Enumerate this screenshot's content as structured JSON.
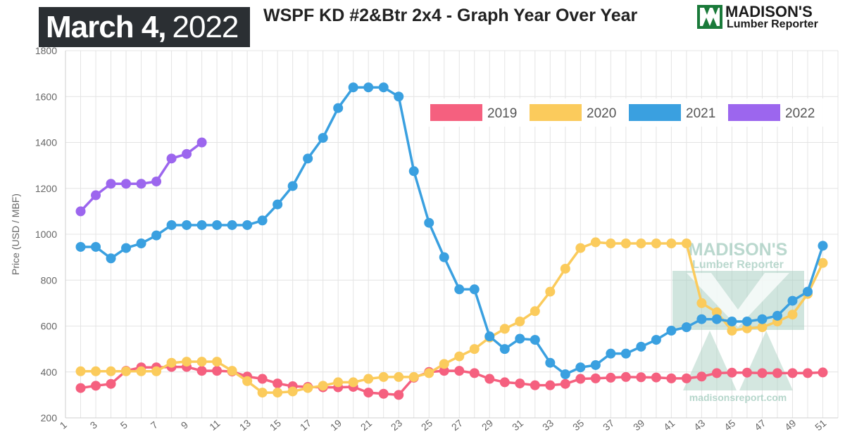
{
  "header": {
    "date_month_day": "March 4,",
    "date_year": "2022",
    "title": "WSPF KD #2&Btr 2x4 - Graph Year Over Year",
    "logo_top": "MADISON'S",
    "logo_bottom": "Lumber Reporter"
  },
  "watermark": {
    "line1": "MADISON'S",
    "line2": "Lumber Reporter",
    "url": "madisonsreport.com"
  },
  "colors": {
    "2019": "#f5607f",
    "2020": "#fbcb5c",
    "2021": "#3aa0e0",
    "2022": "#9c66ee",
    "logo_green": "#1a7a3a",
    "watermark": "#a9cfc2"
  },
  "chart_data": {
    "type": "line",
    "title": "WSPF KD #2&Btr 2x4 - Graph Year Over Year",
    "xlabel": "",
    "ylabel": "Price (USD / MBF)",
    "xlim": [
      1,
      52
    ],
    "ylim": [
      200,
      1800
    ],
    "x_ticks": [
      "1",
      "3",
      "5",
      "7",
      "9",
      "11",
      "13",
      "15",
      "17",
      "19",
      "21",
      "23",
      "25",
      "27",
      "29",
      "31",
      "33",
      "35",
      "37",
      "39",
      "41",
      "43",
      "45",
      "47",
      "49",
      "51"
    ],
    "y_ticks": [
      "200",
      "400",
      "600",
      "800",
      "1000",
      "1200",
      "1400",
      "1600",
      "1800"
    ],
    "grid": true,
    "legend_position": "top-right",
    "series": [
      {
        "name": "2019",
        "x": [
          2,
          3,
          4,
          5,
          6,
          7,
          8,
          9,
          10,
          11,
          12,
          13,
          14,
          15,
          16,
          17,
          18,
          19,
          20,
          21,
          22,
          23,
          24,
          25,
          26,
          27,
          28,
          29,
          30,
          31,
          32,
          33,
          34,
          35,
          36,
          37,
          38,
          39,
          40,
          41,
          42,
          43,
          44,
          45,
          46,
          47,
          48,
          49,
          50,
          51
        ],
        "values": [
          330,
          340,
          348,
          405,
          420,
          420,
          422,
          422,
          405,
          405,
          402,
          380,
          370,
          350,
          338,
          335,
          333,
          333,
          335,
          310,
          305,
          300,
          375,
          400,
          405,
          405,
          395,
          370,
          355,
          350,
          342,
          342,
          348,
          370,
          372,
          375,
          378,
          377,
          376,
          372,
          372,
          380,
          395,
          397,
          397,
          395,
          395,
          395,
          395,
          398
        ]
      },
      {
        "name": "2020",
        "x": [
          2,
          3,
          4,
          5,
          6,
          7,
          8,
          9,
          10,
          11,
          12,
          13,
          14,
          15,
          16,
          17,
          18,
          19,
          20,
          21,
          22,
          23,
          24,
          25,
          26,
          27,
          28,
          29,
          30,
          31,
          32,
          33,
          34,
          35,
          36,
          37,
          38,
          39,
          40,
          41,
          42,
          43,
          44,
          45,
          46,
          47,
          48,
          49,
          50,
          51
        ],
        "values": [
          403,
          403,
          403,
          403,
          403,
          403,
          440,
          445,
          445,
          445,
          405,
          360,
          310,
          310,
          315,
          330,
          340,
          355,
          355,
          370,
          378,
          378,
          378,
          395,
          435,
          468,
          500,
          550,
          588,
          620,
          665,
          750,
          850,
          940,
          965,
          960,
          960,
          960,
          960,
          960,
          960,
          700,
          660,
          580,
          590,
          595,
          620,
          650,
          740,
          875
        ]
      },
      {
        "name": "2021",
        "x": [
          2,
          3,
          4,
          5,
          6,
          7,
          8,
          9,
          10,
          11,
          12,
          13,
          14,
          15,
          16,
          17,
          18,
          19,
          20,
          21,
          22,
          23,
          24,
          25,
          26,
          27,
          28,
          29,
          30,
          31,
          32,
          33,
          34,
          35,
          36,
          37,
          38,
          39,
          40,
          41,
          42,
          43,
          44,
          45,
          46,
          47,
          48,
          49,
          50,
          51
        ],
        "values": [
          945,
          945,
          895,
          940,
          960,
          995,
          1040,
          1040,
          1040,
          1040,
          1040,
          1040,
          1060,
          1130,
          1210,
          1330,
          1420,
          1550,
          1640,
          1640,
          1640,
          1600,
          1275,
          1050,
          900,
          760,
          760,
          555,
          500,
          545,
          540,
          440,
          390,
          420,
          430,
          480,
          480,
          510,
          540,
          580,
          595,
          630,
          630,
          620,
          620,
          630,
          645,
          710,
          750,
          950
        ]
      },
      {
        "name": "2022",
        "x": [
          2,
          3,
          4,
          5,
          6,
          7,
          8,
          9,
          10
        ],
        "values": [
          1100,
          1170,
          1220,
          1220,
          1220,
          1230,
          1330,
          1350,
          1400
        ]
      }
    ]
  }
}
